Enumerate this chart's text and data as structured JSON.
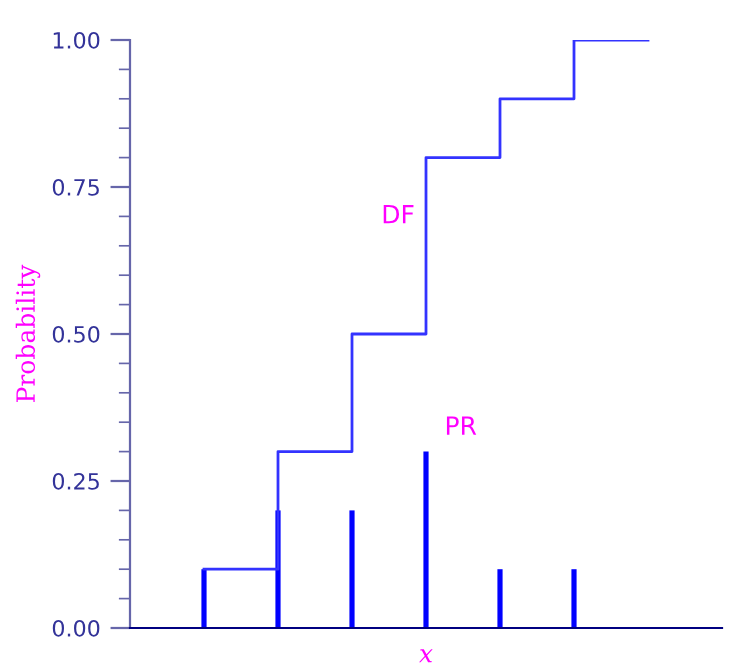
{
  "chart_data": {
    "type": "step",
    "xlabel": "x",
    "ylabel": "Probability",
    "categories": [
      null,
      null,
      null,
      null,
      null,
      null,
      null
    ],
    "series": [
      {
        "name": "DF",
        "color": "#3333ff",
        "values": [
          0.1,
          0.3,
          0.5,
          0.8,
          0.9,
          1.0,
          1.0
        ]
      },
      {
        "name": "PR",
        "type": "bar",
        "color": "#0000ff",
        "values": [
          0.1,
          0.2,
          0.2,
          0.3,
          0.1,
          0.1,
          null
        ]
      }
    ],
    "ylim": [
      0,
      1
    ],
    "yticks": [
      {
        "value": 0,
        "label": "0.00"
      },
      {
        "value": 0.25,
        "label": "0.25"
      },
      {
        "value": 0.5,
        "label": "0.50"
      },
      {
        "value": 0.75,
        "label": "0.75"
      },
      {
        "value": 1.0,
        "label": "1.00"
      }
    ],
    "grid": false,
    "legend": false
  }
}
